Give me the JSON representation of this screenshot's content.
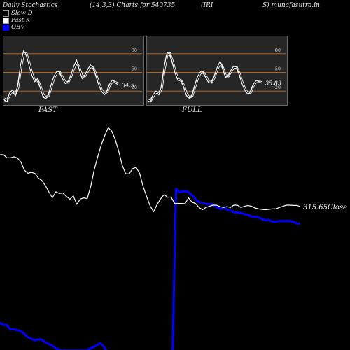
{
  "header": {
    "title": "Daily Stochastics",
    "params": "(14,3,3) Charts for 540735",
    "ticker_a": "(IRI",
    "ticker_b": "S) munafasutra.in"
  },
  "legend": [
    {
      "label": "Slow  D",
      "color": "#000000"
    },
    {
      "label": "Fast K",
      "color": "#ffffff"
    },
    {
      "label": "OBV",
      "color": "#0000ff"
    }
  ],
  "panels": {
    "fast_label": "FAST",
    "full_label": "FULL",
    "fast_value": "34.5",
    "full_value": "35.83",
    "level_labels": [
      "80",
      "50",
      "20"
    ]
  },
  "price_label": "315.65Close",
  "colors": {
    "background": "#000000",
    "panel_bg": "#262626",
    "level_line": "#b5651d",
    "price": "#ffffff",
    "obv": "#0000ff"
  },
  "chart_data": [
    {
      "type": "line",
      "title": "FAST",
      "ylim": [
        0,
        100
      ],
      "levels": [
        80,
        50,
        20
      ],
      "series": [
        {
          "name": "Fast K",
          "values": [
            5,
            3,
            18,
            22,
            12,
            30,
            65,
            85,
            78,
            60,
            45,
            35,
            40,
            25,
            10,
            8,
            14,
            32,
            45,
            52,
            50,
            40,
            32,
            35,
            45,
            60,
            70,
            55,
            40,
            45,
            55,
            62,
            58,
            45,
            30,
            20,
            14,
            20,
            32,
            38,
            33,
            30
          ]
        },
        {
          "name": "Slow  D",
          "values": [
            8,
            5,
            14,
            20,
            15,
            26,
            58,
            80,
            80,
            65,
            48,
            37,
            38,
            28,
            14,
            10,
            13,
            28,
            42,
            50,
            50,
            42,
            34,
            34,
            43,
            56,
            66,
            58,
            44,
            44,
            52,
            59,
            58,
            47,
            33,
            22,
            16,
            19,
            30,
            36,
            34,
            32
          ]
        }
      ]
    },
    {
      "type": "line",
      "title": "FULL",
      "ylim": [
        0,
        100
      ],
      "levels": [
        80,
        50,
        20
      ],
      "series": [
        {
          "name": "Fast K",
          "values": [
            4,
            3,
            15,
            20,
            14,
            28,
            60,
            82,
            80,
            64,
            47,
            37,
            38,
            26,
            12,
            9,
            13,
            30,
            44,
            51,
            50,
            41,
            33,
            34,
            44,
            58,
            68,
            57,
            42,
            44,
            54,
            61,
            58,
            46,
            31,
            21,
            15,
            19,
            31,
            37,
            35,
            33
          ]
        },
        {
          "name": "Slow  D",
          "values": [
            6,
            4,
            12,
            18,
            16,
            24,
            55,
            78,
            80,
            67,
            50,
            39,
            37,
            29,
            15,
            10,
            12,
            27,
            41,
            49,
            50,
            43,
            35,
            34,
            42,
            55,
            65,
            58,
            45,
            44,
            52,
            58,
            58,
            48,
            34,
            23,
            17,
            18,
            29,
            35,
            35,
            34
          ]
        }
      ]
    },
    {
      "type": "line",
      "series": [
        {
          "name": "Close",
          "values": [
            56.2,
            56.2,
            52.6,
            52.6,
            53.8,
            52.3,
            47.6,
            37.9,
            34.4,
            35.5,
            34.1,
            28.6,
            25.7,
            19.8,
            12.4,
            5.4,
            12.5,
            10.5,
            11.0,
            7.1,
            3.8,
            7.7,
            -2.4,
            4.0,
            5.3,
            4.5,
            19.0,
            38.8,
            54.0,
            67.8,
            78.9,
            88.1,
            84.1,
            74.4,
            60.5,
            43.9,
            33.8,
            33.7,
            39.8,
            41.2,
            34.3,
            18.7,
            6.9,
            -4.2,
            -11.1,
            -2.4,
            4.1,
            9.3,
            6.0,
            6.3,
            -1.1,
            -1.2,
            -1.3,
            -1.5,
            5.3,
            0.1,
            -1.2,
            -6.0,
            -8.7,
            -6.0,
            -4.6,
            -3.3,
            -3.3,
            -5.0,
            -6.0,
            -5.0,
            -6.0,
            -3.2,
            -3.4,
            -6.0,
            -4.7,
            -3.6,
            -4.6,
            -6.6,
            -7.7,
            -8.3,
            -8.7,
            -8.3,
            -7.7,
            -7.7,
            -6.0,
            -4.7,
            -3.3,
            -3.3,
            -3.6,
            -3.6,
            -4.8
          ]
        },
        {
          "name": "OBV",
          "values": [
            -142,
            -145,
            -145,
            -150,
            -150,
            -151,
            -152,
            -155,
            -159,
            -161,
            -163,
            -162,
            -162,
            -165,
            -167,
            -169,
            -172,
            -174,
            -175,
            -175,
            -175,
            -175,
            -175,
            -175,
            -175,
            -175,
            -173,
            -171,
            -169,
            -166,
            -170,
            -176,
            -176,
            -176,
            -176,
            -176,
            -176,
            -176,
            -176,
            -176,
            -176,
            -176,
            -176,
            -176,
            -176,
            -176,
            -176,
            -176,
            -176,
            -176,
            -176,
            16,
            12,
            13,
            13,
            11,
            7,
            2,
            0,
            -1,
            -2,
            -2,
            -4,
            -6,
            -8,
            -6,
            -9,
            -10,
            -12,
            -12,
            -13,
            -14,
            -15,
            -17,
            -17,
            -18,
            -20,
            -21,
            -21,
            -23,
            -23,
            -22,
            -22,
            -22,
            -22,
            -23,
            -25,
            -25
          ]
        }
      ]
    }
  ]
}
